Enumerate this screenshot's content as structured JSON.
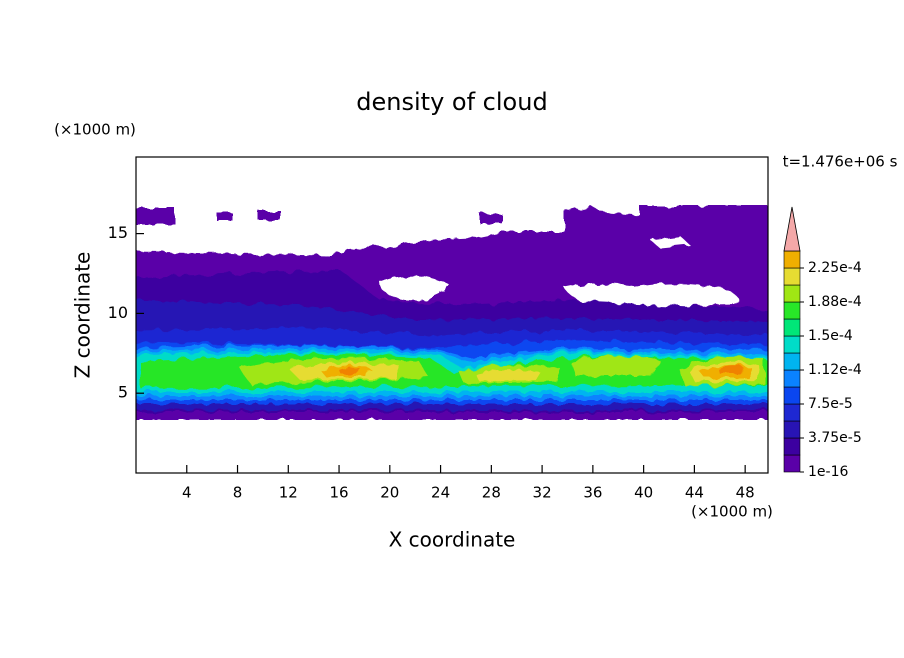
{
  "chart_data": {
    "type": "contour",
    "title": "density of cloud",
    "xlabel": "X coordinate",
    "ylabel": "Z coordinate",
    "x_unit": "(×1000 m)",
    "y_unit": "(×1000 m)",
    "annotation": "t=1.476e+06 s",
    "xlim": [
      0,
      49.8
    ],
    "xticks": [
      4,
      8,
      12,
      16,
      20,
      24,
      28,
      32,
      36,
      40,
      44,
      48
    ],
    "ylim": [
      0,
      19.8
    ],
    "yticks": [
      5,
      10,
      15
    ],
    "colorbar": {
      "range": [
        0,
        0.00024375
      ],
      "ticks": [
        {
          "value": 1e-16,
          "label": "1e-16"
        },
        {
          "value": 3.75e-05,
          "label": "3.75e-5"
        },
        {
          "value": 7.5e-05,
          "label": "7.5e-5"
        },
        {
          "value": 0.0001125,
          "label": "1.12e-4"
        },
        {
          "value": 0.00015,
          "label": "1.5e-4"
        },
        {
          "value": 0.0001875,
          "label": "1.88e-4"
        },
        {
          "value": 0.000225,
          "label": "2.25e-4"
        }
      ],
      "colors": [
        "#5a00a8",
        "#3c00a0",
        "#2814b4",
        "#1e28d2",
        "#0a46f0",
        "#0a82ff",
        "#00b4f0",
        "#00dcc8",
        "#00e678",
        "#28e628",
        "#a0e614",
        "#e6dc32",
        "#f0af00",
        "#f08200",
        "#f05000",
        "#e61e1e"
      ],
      "extend_color": "#f4a8a8"
    }
  }
}
